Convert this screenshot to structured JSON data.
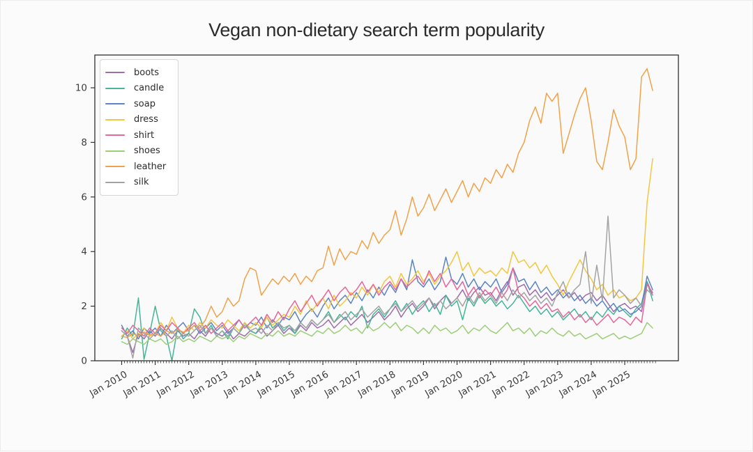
{
  "chart_data": {
    "type": "line",
    "title": "Vegan non-dietary search term popularity",
    "xlabel": "",
    "ylabel": "",
    "xlim": [
      2009.2,
      2026.6
    ],
    "ylim": [
      0,
      11.2
    ],
    "grid": false,
    "legend_position": "upper-left",
    "y_ticks": [
      {
        "v": 0,
        "label": "0"
      },
      {
        "v": 2,
        "label": "2"
      },
      {
        "v": 4,
        "label": "4"
      },
      {
        "v": 6,
        "label": "6"
      },
      {
        "v": 8,
        "label": "8"
      },
      {
        "v": 10,
        "label": "10"
      }
    ],
    "x_ticks": [
      {
        "v": 2010,
        "label": "Jan 2010"
      },
      {
        "v": 2011,
        "label": "Jan 2011"
      },
      {
        "v": 2012,
        "label": "Jan 2012"
      },
      {
        "v": 2013,
        "label": "Jan 2013"
      },
      {
        "v": 2014,
        "label": "Jan 2014"
      },
      {
        "v": 2015,
        "label": "Jan 2015"
      },
      {
        "v": 2016,
        "label": "Jan 2016"
      },
      {
        "v": 2017,
        "label": "Jan 2017"
      },
      {
        "v": 2018,
        "label": "Jan 2018"
      },
      {
        "v": 2019,
        "label": "Jan 2019"
      },
      {
        "v": 2020,
        "label": "Jan 2020"
      },
      {
        "v": 2021,
        "label": "Jan 2021"
      },
      {
        "v": 2022,
        "label": "Jan 2022"
      },
      {
        "v": 2023,
        "label": "Jan 2023"
      },
      {
        "v": 2024,
        "label": "Jan 2024"
      },
      {
        "v": 2025,
        "label": "Jan 2025"
      }
    ],
    "x_minor_tick_interval": 0.0833333,
    "x_minor_tick_range": [
      2010.0,
      2025.92
    ],
    "x_start": 2010.0,
    "x_step": 0.1666667,
    "colors": {
      "frame": "#333333",
      "tick_label": "#3c3c3c",
      "plot_background": "#fafafa",
      "figure_background": "#fbfbfb"
    },
    "series": [
      {
        "name": "boots",
        "color": "#9e6bab",
        "values": [
          1.1,
          0.9,
          0.3,
          1.0,
          0.8,
          1.1,
          0.9,
          1.2,
          1.0,
          0.8,
          1.1,
          0.9,
          1.0,
          0.8,
          1.1,
          0.9,
          1.2,
          1.0,
          0.9,
          1.1,
          0.8,
          1.0,
          0.9,
          1.1,
          1.0,
          1.2,
          0.9,
          1.1,
          1.3,
          1.0,
          1.2,
          1.0,
          1.3,
          1.1,
          1.4,
          1.2,
          1.3,
          1.5,
          1.2,
          1.4,
          1.6,
          1.3,
          1.5,
          1.7,
          1.4,
          1.6,
          1.8,
          1.5,
          1.7,
          2.0,
          1.6,
          1.9,
          2.1,
          1.8,
          2.0,
          2.3,
          1.9,
          2.2,
          2.4,
          2.1,
          2.3,
          2.6,
          2.2,
          2.5,
          2.7,
          2.4,
          2.5,
          2.2,
          2.6,
          2.9,
          2.4,
          2.7,
          2.8,
          2.4,
          2.6,
          2.3,
          2.5,
          2.2,
          2.4,
          2.6,
          2.3,
          2.5,
          2.2,
          2.4,
          2.5,
          2.2,
          2.4,
          2.1,
          1.8,
          2.0,
          2.1,
          1.9,
          2.0,
          1.8,
          2.9,
          2.4
        ]
      },
      {
        "name": "candle",
        "color": "#44b598",
        "values": [
          0.8,
          1.2,
          0.9,
          2.3,
          0.05,
          1.0,
          2.0,
          1.1,
          0.9,
          0.0,
          1.2,
          0.8,
          1.0,
          1.9,
          1.6,
          1.0,
          1.3,
          0.9,
          1.1,
          0.8,
          1.2,
          1.0,
          1.4,
          1.1,
          1.0,
          1.3,
          1.6,
          1.2,
          1.4,
          1.1,
          1.3,
          1.0,
          1.4,
          1.2,
          1.5,
          1.3,
          1.5,
          1.8,
          1.4,
          1.7,
          1.5,
          1.8,
          1.6,
          2.0,
          1.2,
          1.7,
          1.9,
          1.6,
          1.9,
          2.2,
          1.8,
          2.1,
          1.7,
          2.0,
          2.2,
          1.8,
          2.1,
          1.7,
          2.4,
          2.0,
          2.2,
          1.5,
          2.3,
          2.0,
          2.4,
          2.1,
          2.3,
          2.0,
          2.2,
          1.9,
          2.1,
          2.4,
          2.1,
          1.8,
          2.0,
          1.7,
          1.9,
          1.6,
          1.8,
          1.5,
          1.7,
          1.9,
          1.6,
          1.8,
          1.5,
          1.8,
          1.6,
          1.9,
          1.7,
          2.0,
          1.8,
          1.6,
          1.9,
          2.1,
          2.9,
          2.2
        ]
      },
      {
        "name": "soap",
        "color": "#5b84c2",
        "values": [
          1.3,
          0.9,
          1.1,
          0.8,
          1.2,
          1.0,
          1.2,
          0.9,
          1.3,
          1.0,
          1.2,
          1.4,
          1.1,
          1.3,
          1.0,
          1.2,
          1.4,
          1.1,
          1.3,
          1.0,
          1.2,
          1.5,
          1.2,
          1.4,
          1.3,
          1.6,
          1.2,
          1.5,
          1.3,
          1.6,
          1.5,
          1.8,
          1.4,
          1.7,
          1.9,
          1.6,
          2.0,
          2.3,
          1.9,
          2.2,
          2.4,
          2.1,
          2.5,
          2.2,
          2.6,
          2.3,
          2.7,
          2.4,
          2.8,
          2.5,
          3.0,
          2.6,
          3.7,
          2.9,
          2.7,
          3.0,
          2.6,
          2.9,
          3.8,
          3.0,
          2.8,
          3.2,
          2.7,
          3.0,
          2.6,
          2.9,
          2.7,
          3.0,
          2.5,
          2.8,
          3.4,
          2.9,
          3.0,
          2.6,
          2.9,
          2.5,
          2.7,
          2.4,
          2.6,
          2.3,
          2.5,
          2.2,
          2.4,
          2.1,
          2.3,
          2.0,
          2.2,
          1.9,
          2.1,
          1.8,
          1.9,
          1.7,
          1.8,
          2.0,
          3.1,
          2.6
        ]
      },
      {
        "name": "dress",
        "color": "#f2c63f",
        "values": [
          0.9,
          1.1,
          0.8,
          1.0,
          1.2,
          0.9,
          1.0,
          1.4,
          1.1,
          1.6,
          1.2,
          1.0,
          1.3,
          1.1,
          1.4,
          1.2,
          1.5,
          1.3,
          1.2,
          1.5,
          1.3,
          1.1,
          1.4,
          1.2,
          1.4,
          1.2,
          1.6,
          1.3,
          1.5,
          1.7,
          1.6,
          2.0,
          1.7,
          2.2,
          1.8,
          2.1,
          2.3,
          1.9,
          2.4,
          2.0,
          2.2,
          2.5,
          2.3,
          2.7,
          2.4,
          2.8,
          2.5,
          2.9,
          3.1,
          2.7,
          3.2,
          2.8,
          3.0,
          3.3,
          2.9,
          3.2,
          2.8,
          3.1,
          3.3,
          3.6,
          4.0,
          3.3,
          3.6,
          3.1,
          3.4,
          3.2,
          3.3,
          3.1,
          3.4,
          3.2,
          4.0,
          3.6,
          3.7,
          3.4,
          3.6,
          3.2,
          3.5,
          3.1,
          2.8,
          2.4,
          2.9,
          3.3,
          3.7,
          3.3,
          3.0,
          2.6,
          2.8,
          2.4,
          2.6,
          2.3,
          2.4,
          2.2,
          2.3,
          2.6,
          5.8,
          7.4
        ]
      },
      {
        "name": "shirt",
        "color": "#e8659a",
        "values": [
          1.2,
          1.0,
          1.3,
          1.1,
          0.9,
          1.2,
          1.0,
          1.3,
          1.1,
          1.4,
          1.2,
          1.0,
          1.2,
          1.4,
          1.1,
          1.3,
          1.0,
          1.2,
          1.4,
          1.1,
          1.3,
          1.5,
          1.2,
          1.4,
          1.6,
          1.3,
          1.7,
          1.4,
          1.8,
          1.5,
          1.9,
          2.2,
          1.8,
          2.1,
          2.4,
          2.0,
          2.3,
          2.6,
          2.2,
          2.5,
          2.7,
          2.4,
          2.6,
          2.9,
          2.5,
          2.8,
          2.4,
          2.7,
          2.9,
          2.6,
          3.0,
          2.7,
          2.9,
          3.1,
          2.8,
          3.3,
          2.9,
          3.2,
          2.7,
          3.0,
          2.6,
          2.9,
          2.4,
          2.7,
          2.3,
          2.6,
          2.4,
          2.7,
          2.3,
          2.6,
          3.4,
          2.5,
          2.3,
          2.0,
          2.2,
          1.9,
          2.1,
          1.8,
          1.9,
          1.6,
          1.8,
          1.5,
          1.7,
          1.4,
          1.6,
          1.3,
          1.5,
          1.7,
          1.4,
          1.6,
          1.5,
          1.3,
          1.6,
          1.4,
          2.8,
          2.5
        ]
      },
      {
        "name": "shoes",
        "color": "#9bce77",
        "values": [
          0.7,
          0.6,
          0.8,
          0.7,
          0.6,
          0.8,
          0.7,
          0.8,
          0.6,
          0.7,
          0.9,
          0.7,
          0.8,
          0.7,
          0.9,
          0.8,
          0.7,
          0.9,
          0.8,
          0.9,
          0.7,
          0.9,
          0.8,
          1.0,
          0.9,
          0.8,
          1.0,
          0.9,
          1.1,
          0.9,
          1.0,
          0.9,
          1.1,
          1.0,
          0.9,
          1.1,
          1.0,
          1.2,
          1.0,
          1.1,
          1.3,
          1.1,
          1.2,
          1.0,
          1.3,
          1.1,
          1.2,
          1.4,
          1.2,
          1.4,
          1.1,
          1.3,
          1.2,
          1.0,
          1.2,
          1.0,
          1.3,
          1.1,
          1.2,
          1.0,
          1.1,
          1.3,
          1.0,
          1.2,
          1.1,
          1.3,
          1.1,
          1.0,
          1.2,
          1.4,
          1.1,
          1.2,
          1.0,
          1.2,
          0.9,
          1.1,
          1.0,
          1.2,
          1.0,
          0.9,
          1.1,
          0.9,
          1.0,
          0.8,
          0.9,
          1.0,
          0.8,
          0.9,
          1.0,
          0.8,
          0.9,
          0.8,
          0.9,
          1.0,
          1.4,
          1.2
        ]
      },
      {
        "name": "leather",
        "color": "#f0a24a",
        "values": [
          0.9,
          0.85,
          1.0,
          0.9,
          1.05,
          0.95,
          1.0,
          0.9,
          1.1,
          1.0,
          1.15,
          1.05,
          1.1,
          1.3,
          1.2,
          1.5,
          2.0,
          1.6,
          1.8,
          2.3,
          2.0,
          2.2,
          3.0,
          3.4,
          3.3,
          2.4,
          2.7,
          3.0,
          2.8,
          3.1,
          2.9,
          3.2,
          2.8,
          3.1,
          2.9,
          3.3,
          3.4,
          4.2,
          3.5,
          4.1,
          3.7,
          4.0,
          3.9,
          4.4,
          4.1,
          4.7,
          4.3,
          4.6,
          4.8,
          5.5,
          4.6,
          5.2,
          6.0,
          5.3,
          5.6,
          6.1,
          5.5,
          5.9,
          6.3,
          5.8,
          6.2,
          6.6,
          6.0,
          6.5,
          6.2,
          6.7,
          6.5,
          7.0,
          6.7,
          7.2,
          6.9,
          7.6,
          8.0,
          8.8,
          9.3,
          8.7,
          9.8,
          9.5,
          9.8,
          7.6,
          8.3,
          9.0,
          9.6,
          10.0,
          8.8,
          7.3,
          7.0,
          8.0,
          9.2,
          8.6,
          8.2,
          7.0,
          7.4,
          10.4,
          10.7,
          9.9
        ]
      },
      {
        "name": "silk",
        "color": "#a3a3a3",
        "values": [
          1.1,
          0.9,
          0.1,
          1.2,
          1.0,
          0.8,
          1.0,
          1.2,
          0.9,
          1.1,
          0.8,
          1.0,
          0.9,
          1.1,
          1.3,
          1.0,
          1.2,
          0.9,
          1.1,
          0.9,
          1.2,
          1.0,
          1.3,
          1.1,
          1.2,
          1.0,
          1.3,
          1.1,
          1.4,
          1.2,
          1.3,
          1.1,
          1.4,
          1.2,
          1.5,
          1.3,
          1.5,
          1.7,
          1.4,
          1.6,
          1.8,
          1.5,
          1.7,
          1.9,
          1.6,
          1.8,
          2.0,
          1.7,
          1.9,
          2.1,
          1.8,
          2.0,
          2.2,
          1.9,
          2.1,
          2.3,
          2.0,
          2.2,
          1.9,
          2.1,
          2.3,
          2.0,
          2.4,
          2.1,
          2.5,
          2.2,
          2.4,
          2.1,
          2.5,
          2.2,
          2.6,
          2.3,
          2.5,
          2.2,
          2.4,
          2.1,
          2.3,
          2.0,
          2.5,
          2.9,
          2.3,
          2.6,
          2.8,
          4.0,
          2.1,
          3.5,
          2.2,
          5.3,
          2.3,
          2.6,
          2.4,
          2.1,
          2.3,
          2.0,
          2.6,
          2.4
        ]
      }
    ]
  }
}
